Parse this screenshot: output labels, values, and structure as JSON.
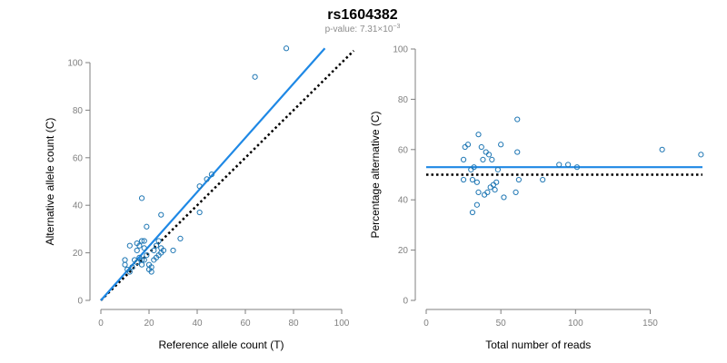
{
  "title": "rs1604382",
  "subtitle": {
    "prefix": "p-value: 7.31×10",
    "exponent": "−3"
  },
  "colors": {
    "fit_line": "#1e88e5",
    "points": "#1f77b4",
    "reference_line": "#000000",
    "axis": "#7f7f7f"
  },
  "chart_data": [
    {
      "type": "scatter",
      "title": "",
      "xlabel": "Reference allele count (T)",
      "ylabel": "Alternative allele count (C)",
      "xlim": [
        0,
        100
      ],
      "ylim": [
        0,
        100
      ],
      "xticks": [
        0,
        20,
        40,
        60,
        80,
        100
      ],
      "yticks": [
        0,
        20,
        40,
        60,
        80,
        100
      ],
      "grid": false,
      "points": [
        {
          "x": 10,
          "y": 15
        },
        {
          "x": 10,
          "y": 17
        },
        {
          "x": 11,
          "y": 13
        },
        {
          "x": 12,
          "y": 12
        },
        {
          "x": 12,
          "y": 23
        },
        {
          "x": 13,
          "y": 14
        },
        {
          "x": 14,
          "y": 17
        },
        {
          "x": 15,
          "y": 16
        },
        {
          "x": 15,
          "y": 21
        },
        {
          "x": 15,
          "y": 24
        },
        {
          "x": 16,
          "y": 18
        },
        {
          "x": 16,
          "y": 23
        },
        {
          "x": 17,
          "y": 15
        },
        {
          "x": 17,
          "y": 17
        },
        {
          "x": 17,
          "y": 25
        },
        {
          "x": 17,
          "y": 43
        },
        {
          "x": 18,
          "y": 17
        },
        {
          "x": 18,
          "y": 22
        },
        {
          "x": 18,
          "y": 25
        },
        {
          "x": 19,
          "y": 19
        },
        {
          "x": 19,
          "y": 31
        },
        {
          "x": 20,
          "y": 13
        },
        {
          "x": 20,
          "y": 15
        },
        {
          "x": 21,
          "y": 12
        },
        {
          "x": 21,
          "y": 14
        },
        {
          "x": 22,
          "y": 17
        },
        {
          "x": 22,
          "y": 21
        },
        {
          "x": 23,
          "y": 18
        },
        {
          "x": 23,
          "y": 23
        },
        {
          "x": 24,
          "y": 19
        },
        {
          "x": 24,
          "y": 25
        },
        {
          "x": 25,
          "y": 20
        },
        {
          "x": 25,
          "y": 22
        },
        {
          "x": 25,
          "y": 36
        },
        {
          "x": 26,
          "y": 21
        },
        {
          "x": 30,
          "y": 21
        },
        {
          "x": 33,
          "y": 26
        },
        {
          "x": 41,
          "y": 37
        },
        {
          "x": 41,
          "y": 48
        },
        {
          "x": 44,
          "y": 51
        },
        {
          "x": 46,
          "y": 53
        },
        {
          "x": 64,
          "y": 94
        },
        {
          "x": 77,
          "y": 106
        }
      ],
      "fit_line": {
        "x": [
          0,
          93
        ],
        "y": [
          0,
          106
        ]
      },
      "reference_line": {
        "x": [
          0,
          105
        ],
        "y": [
          0,
          105
        ]
      }
    },
    {
      "type": "scatter",
      "title": "",
      "xlabel": "Total number of reads",
      "ylabel": "Percentage alternative (C)",
      "xlim": [
        0,
        185
      ],
      "ylim": [
        0,
        100
      ],
      "xticks": [
        0,
        50,
        100,
        150
      ],
      "yticks": [
        0,
        20,
        40,
        60,
        80,
        100
      ],
      "grid": false,
      "points": [
        {
          "x": 25,
          "y": 48
        },
        {
          "x": 25,
          "y": 56
        },
        {
          "x": 26,
          "y": 61
        },
        {
          "x": 28,
          "y": 62
        },
        {
          "x": 30,
          "y": 52
        },
        {
          "x": 31,
          "y": 35
        },
        {
          "x": 31,
          "y": 48
        },
        {
          "x": 32,
          "y": 53
        },
        {
          "x": 34,
          "y": 38
        },
        {
          "x": 34,
          "y": 47
        },
        {
          "x": 35,
          "y": 43
        },
        {
          "x": 35,
          "y": 66
        },
        {
          "x": 37,
          "y": 61
        },
        {
          "x": 38,
          "y": 56
        },
        {
          "x": 39,
          "y": 42
        },
        {
          "x": 40,
          "y": 59
        },
        {
          "x": 41,
          "y": 43
        },
        {
          "x": 42,
          "y": 58
        },
        {
          "x": 43,
          "y": 45
        },
        {
          "x": 44,
          "y": 56
        },
        {
          "x": 45,
          "y": 46
        },
        {
          "x": 46,
          "y": 44
        },
        {
          "x": 47,
          "y": 47
        },
        {
          "x": 48,
          "y": 52
        },
        {
          "x": 50,
          "y": 62
        },
        {
          "x": 52,
          "y": 41
        },
        {
          "x": 60,
          "y": 43
        },
        {
          "x": 61,
          "y": 59
        },
        {
          "x": 61,
          "y": 72
        },
        {
          "x": 62,
          "y": 48
        },
        {
          "x": 78,
          "y": 48
        },
        {
          "x": 89,
          "y": 54
        },
        {
          "x": 95,
          "y": 54
        },
        {
          "x": 101,
          "y": 53
        },
        {
          "x": 158,
          "y": 60
        },
        {
          "x": 184,
          "y": 58
        }
      ],
      "fit_line": {
        "x": [
          0,
          185
        ],
        "y": [
          53,
          53
        ]
      },
      "reference_line": {
        "x": [
          0,
          185
        ],
        "y": [
          50,
          50
        ]
      }
    }
  ]
}
